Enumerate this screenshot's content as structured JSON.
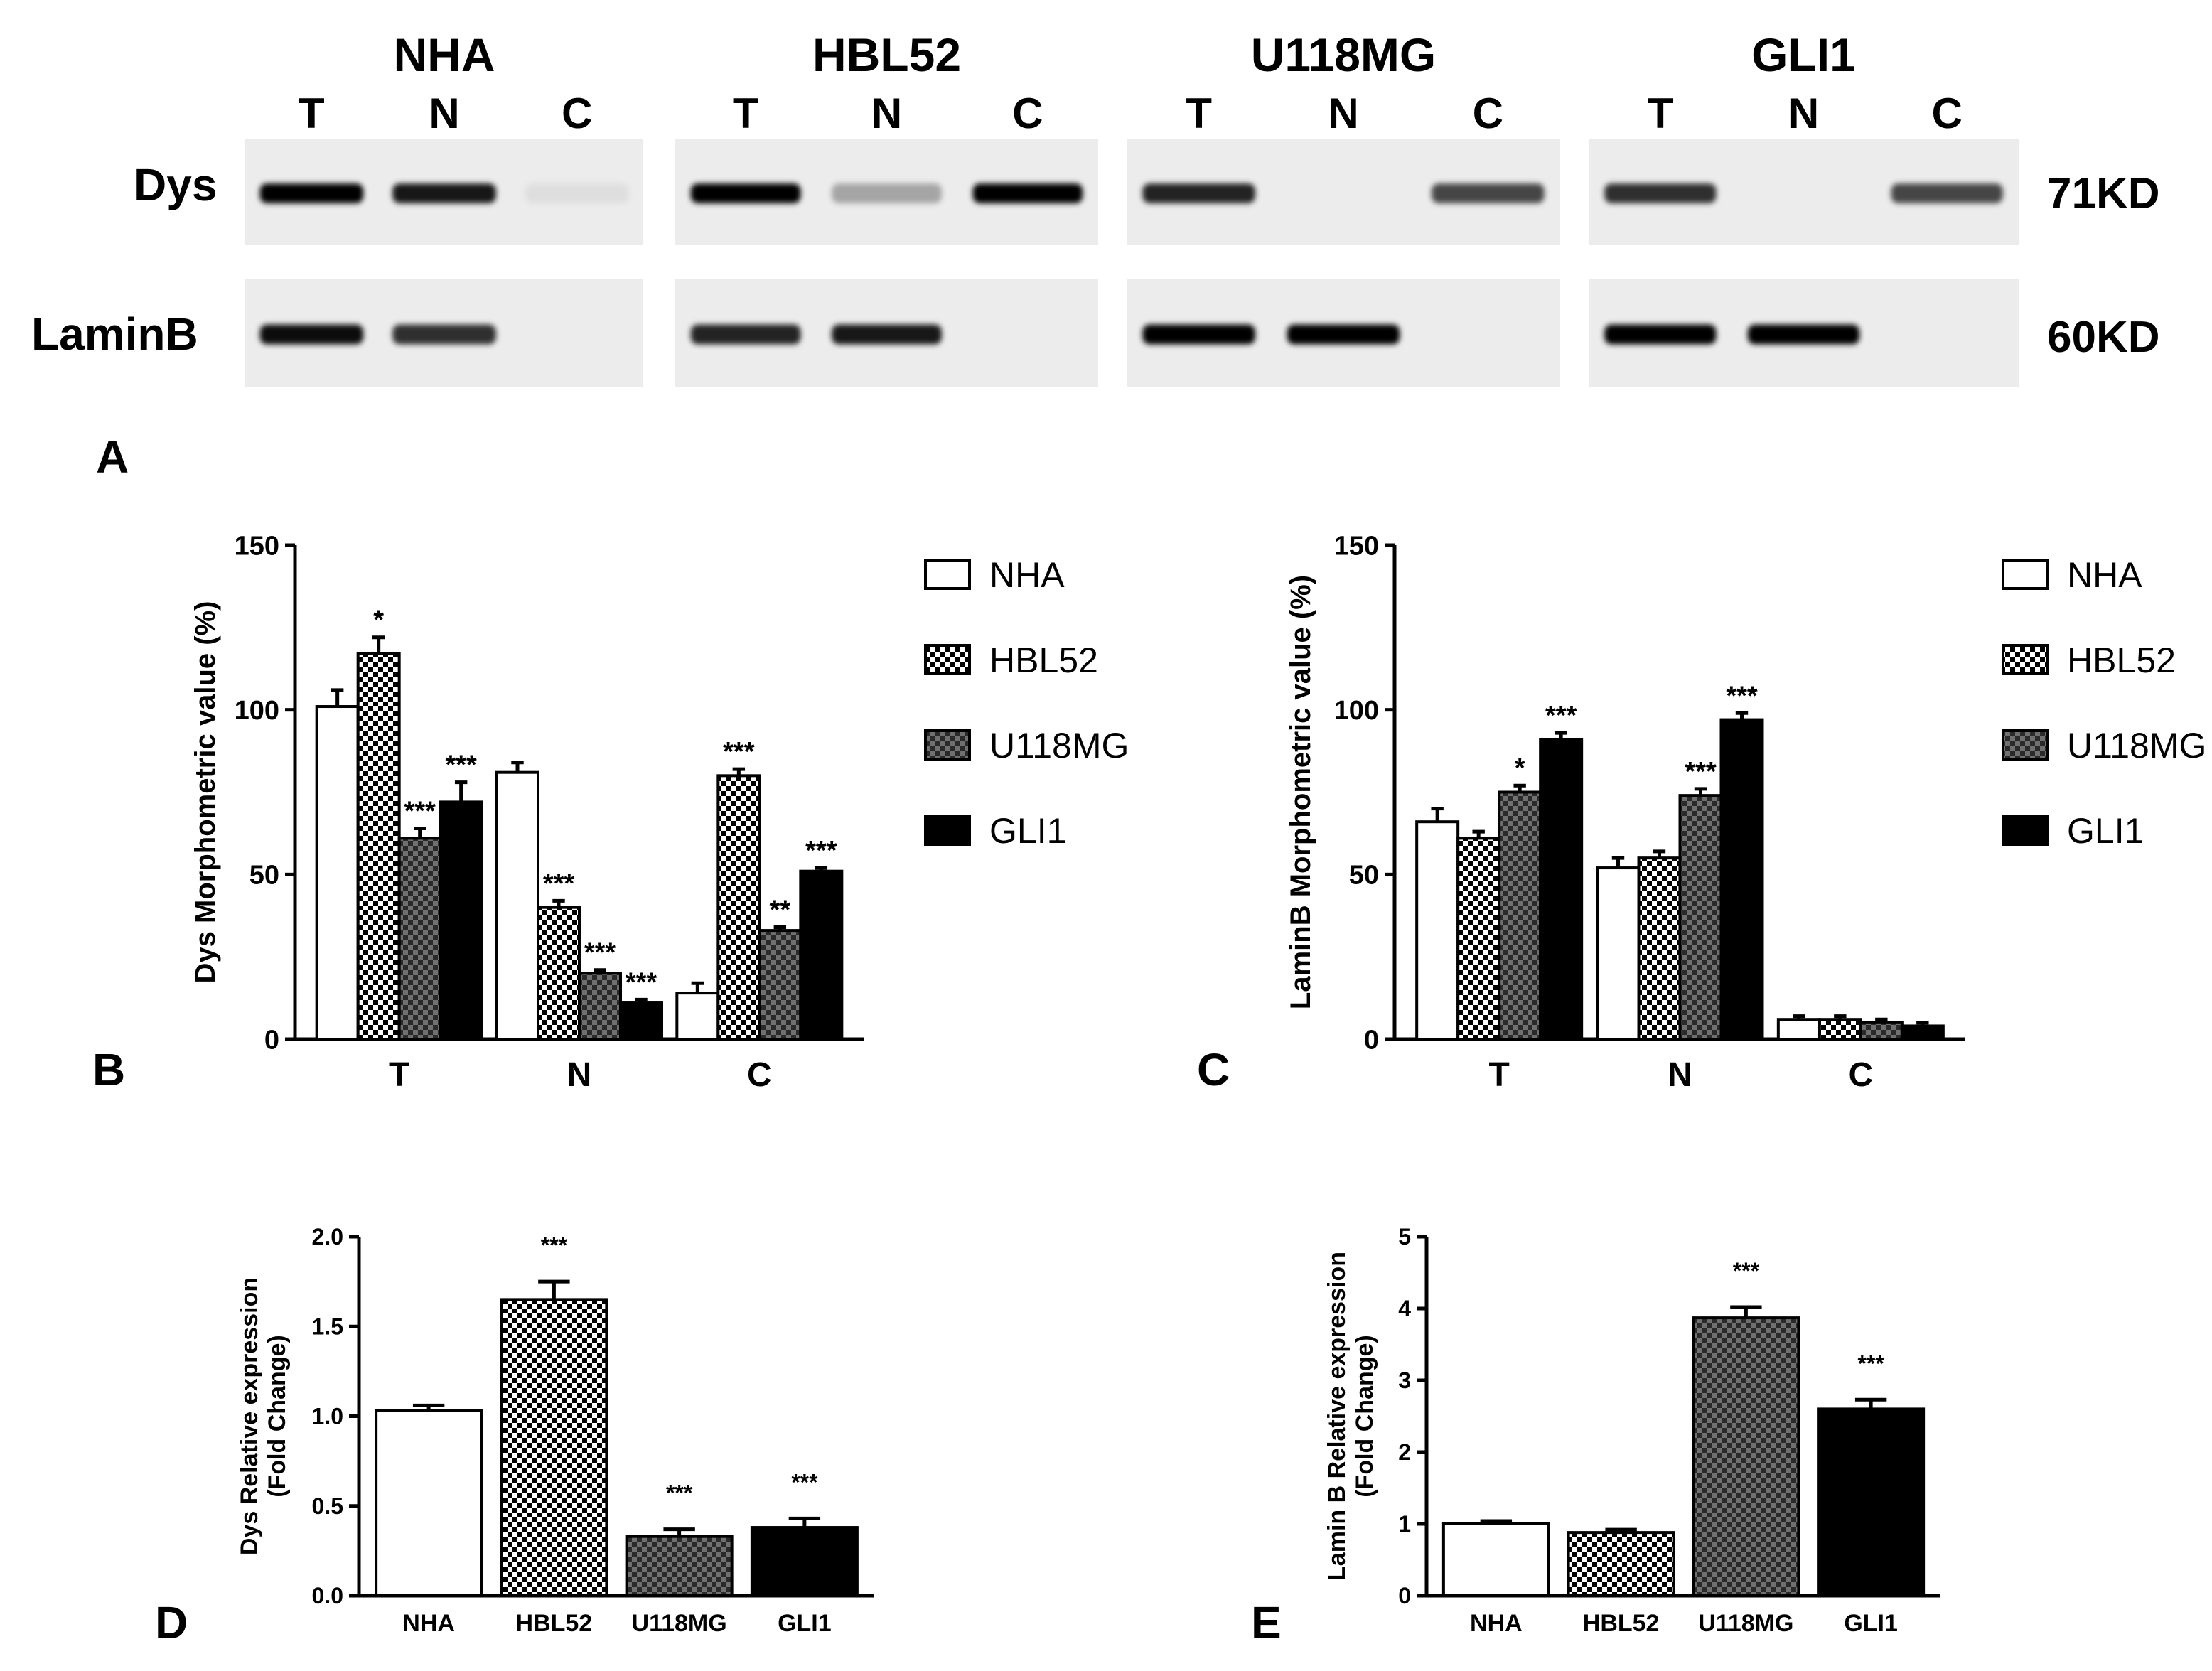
{
  "colors": {
    "ink": "#000000",
    "blot_bg": "#ececec",
    "white": "#ffffff",
    "dark_check": "#555555"
  },
  "blot": {
    "panel_letter": "A",
    "cell_lines": [
      "NHA",
      "HBL52",
      "U118MG",
      "GLI1"
    ],
    "lanes": [
      "T",
      "N",
      "C"
    ],
    "rows": [
      {
        "label": "Dys",
        "size": "71KD",
        "intensity": [
          [
            1.0,
            0.9,
            0.06
          ],
          [
            1.0,
            0.3,
            1.0
          ],
          [
            0.85,
            0.0,
            0.7
          ],
          [
            0.8,
            0.0,
            0.7
          ]
        ]
      },
      {
        "label": "LaminB",
        "size": "60KD",
        "intensity": [
          [
            0.95,
            0.8,
            0.0
          ],
          [
            0.85,
            0.9,
            0.0
          ],
          [
            1.0,
            1.0,
            0.0
          ],
          [
            1.0,
            1.0,
            0.0
          ]
        ]
      }
    ]
  },
  "legend": {
    "entries": [
      "NHA",
      "HBL52",
      "U118MG",
      "GLI1"
    ]
  },
  "chart_data": [
    {
      "panel": "B",
      "type": "bar",
      "ylabel": "Dys Morphometric value (%)",
      "categories": [
        "T",
        "N",
        "C"
      ],
      "ylim": [
        0,
        150
      ],
      "yticks": [
        "0",
        "50",
        "100",
        "150"
      ],
      "series": [
        {
          "name": "NHA",
          "values": [
            101,
            81,
            14
          ],
          "errors": [
            5,
            3,
            3
          ],
          "stars": [
            "",
            "",
            ""
          ]
        },
        {
          "name": "HBL52",
          "values": [
            117,
            40,
            80
          ],
          "errors": [
            5,
            2,
            2
          ],
          "stars": [
            "*",
            "***",
            "***"
          ]
        },
        {
          "name": "U118MG",
          "values": [
            61,
            20,
            33
          ],
          "errors": [
            3,
            1,
            1
          ],
          "stars": [
            "***",
            "***",
            "**"
          ]
        },
        {
          "name": "GLI1",
          "values": [
            72,
            11,
            51
          ],
          "errors": [
            6,
            1,
            1
          ],
          "stars": [
            "***",
            "***",
            "***"
          ]
        }
      ]
    },
    {
      "panel": "C",
      "type": "bar",
      "ylabel": "LaminB Morphometric value (%)",
      "categories": [
        "T",
        "N",
        "C"
      ],
      "ylim": [
        0,
        150
      ],
      "yticks": [
        "0",
        "50",
        "100",
        "150"
      ],
      "series": [
        {
          "name": "NHA",
          "values": [
            66,
            52,
            6
          ],
          "errors": [
            4,
            3,
            1
          ],
          "stars": [
            "",
            "",
            ""
          ]
        },
        {
          "name": "HBL52",
          "values": [
            61,
            55,
            6
          ],
          "errors": [
            2,
            2,
            1
          ],
          "stars": [
            "",
            "",
            ""
          ]
        },
        {
          "name": "U118MG",
          "values": [
            75,
            74,
            5
          ],
          "errors": [
            2,
            2,
            1
          ],
          "stars": [
            "*",
            "***",
            ""
          ]
        },
        {
          "name": "GLI1",
          "values": [
            91,
            97,
            4
          ],
          "errors": [
            2,
            2,
            1
          ],
          "stars": [
            "***",
            "***",
            ""
          ]
        }
      ]
    },
    {
      "panel": "D",
      "type": "bar",
      "ylabel": "Dys Relative expression",
      "ylabel2": "(Fold Change)",
      "categories": [
        "NHA",
        "HBL52",
        "U118MG",
        "GLI1"
      ],
      "ylim": [
        0,
        2.0
      ],
      "yticks": [
        "0.0",
        "0.5",
        "1.0",
        "1.5",
        "2.0"
      ],
      "values": [
        1.03,
        1.65,
        0.33,
        0.38
      ],
      "errors": [
        0.03,
        0.1,
        0.04,
        0.05
      ],
      "stars": [
        "",
        "***",
        "***",
        "***"
      ]
    },
    {
      "panel": "E",
      "type": "bar",
      "ylabel": "Lamin B Relative expression",
      "ylabel2": "(Fold Change)",
      "categories": [
        "NHA",
        "HBL52",
        "U118MG",
        "GLI1"
      ],
      "ylim": [
        0,
        5
      ],
      "yticks": [
        "0",
        "1",
        "2",
        "3",
        "4",
        "5"
      ],
      "values": [
        1.0,
        0.88,
        3.87,
        2.6
      ],
      "errors": [
        0.04,
        0.04,
        0.15,
        0.13
      ],
      "stars": [
        "",
        "",
        "***",
        "***"
      ]
    }
  ]
}
